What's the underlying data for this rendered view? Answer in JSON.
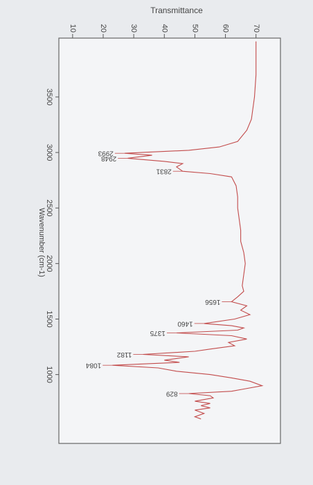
{
  "chart_data": {
    "type": "line",
    "title": "Transmittance",
    "x_label": "Wavenumber (cm-1)",
    "x": [
      4000,
      3700,
      3500,
      3300,
      3200,
      3100,
      3050,
      3020,
      2993,
      2975,
      2948,
      2920,
      2900,
      2870,
      2831,
      2810,
      2780,
      2700,
      2600,
      2500,
      2400,
      2300,
      2200,
      2100,
      2000,
      1900,
      1800,
      1750,
      1700,
      1656,
      1620,
      1580,
      1540,
      1500,
      1460,
      1440,
      1420,
      1400,
      1375,
      1350,
      1320,
      1290,
      1260,
      1230,
      1210,
      1182,
      1160,
      1130,
      1110,
      1084,
      1060,
      1030,
      1000,
      970,
      940,
      900,
      870,
      850,
      829,
      810,
      790,
      760,
      740,
      720,
      700,
      680,
      650,
      620,
      600
    ],
    "series": [
      {
        "name": "Transmittance",
        "color": "#c24a4a",
        "values": [
          70,
          70,
          69.5,
          68.5,
          67,
          64,
          58,
          48,
          27,
          36,
          28,
          40,
          46,
          44,
          46,
          55,
          62,
          63.5,
          64,
          64,
          64.5,
          65,
          65,
          66,
          66.5,
          66,
          65.5,
          66,
          64,
          62,
          67,
          65,
          68,
          63,
          53,
          62,
          66,
          64,
          44,
          62,
          67,
          61,
          63,
          55,
          50,
          33,
          48,
          40,
          45,
          23,
          38,
          44,
          55,
          62,
          68,
          72,
          66,
          62,
          48,
          55,
          56,
          50,
          55,
          52,
          55,
          50,
          53,
          50,
          52
        ]
      }
    ],
    "peaks": [
      2993,
      2948,
      2831,
      1656,
      1460,
      1375,
      1182,
      1084,
      829
    ],
    "xlim": [
      4030,
      380
    ],
    "ylim": [
      5.5,
      78
    ],
    "xticks": [
      3500,
      3000,
      2500,
      2000,
      1500,
      1000
    ],
    "yticks": [
      10,
      20,
      30,
      40,
      50,
      60,
      70
    ]
  }
}
